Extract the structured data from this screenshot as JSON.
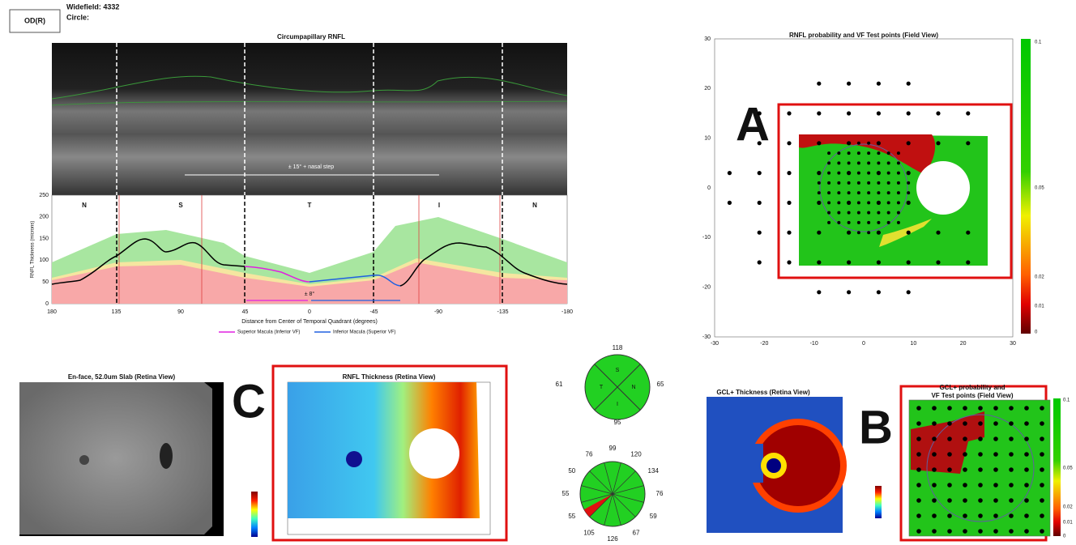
{
  "header": {
    "eye": "OD(R)",
    "widefield": "Widefield: 4332",
    "circle": "Circle:"
  },
  "rnfl_profile": {
    "title": "Circumpapillary RNFL",
    "quadrants": [
      "N",
      "S",
      "T",
      "I",
      "N"
    ],
    "annotation_step": "± 15° + nasal step",
    "annotation_macula": "± 8°",
    "ylabel": "RNFL Thickness (microns)",
    "xlabel": "Distance from Center of Temporal Quadrant (degrees)",
    "yticks": [
      0,
      50,
      100,
      150,
      200,
      250
    ],
    "xticks": [
      180,
      135,
      90,
      45,
      0,
      -45,
      -90,
      -135,
      -180
    ],
    "legend": [
      "Superior Macula (Inferior VF)",
      "Inferior Macula (Superior VF)"
    ]
  },
  "rnfl_probability": {
    "title": "RNFL probability and VF Test points (Field View)",
    "label": "A",
    "xticks": [
      -30,
      -20,
      -10,
      0,
      10,
      20,
      30
    ],
    "yticks": [
      30,
      20,
      10,
      0,
      -10,
      -20,
      -30
    ],
    "colorbar": [
      0.1,
      0.05,
      0.02,
      0.01,
      0
    ]
  },
  "enface": {
    "title": "En-face, 52.0um Slab (Retina View)"
  },
  "rnfl_thickness": {
    "title": "RNFL Thickness (Retina View)",
    "label": "C"
  },
  "quadrant_chart": {
    "labels": [
      "S",
      "N",
      "I",
      "T"
    ],
    "values": [
      118,
      65,
      95,
      61
    ]
  },
  "clock_chart": {
    "values": [
      99,
      120,
      134,
      76,
      59,
      67,
      126,
      105,
      55,
      55,
      50,
      76
    ]
  },
  "gcl_thickness": {
    "title": "GCL+ Thickness (Retina View)"
  },
  "gcl_probability": {
    "title": [
      "GCL+ probability and",
      "VF Test points (Field View)"
    ],
    "label": "B",
    "colorbar": [
      0.1,
      0.05,
      0.02,
      0.01,
      0
    ]
  }
}
